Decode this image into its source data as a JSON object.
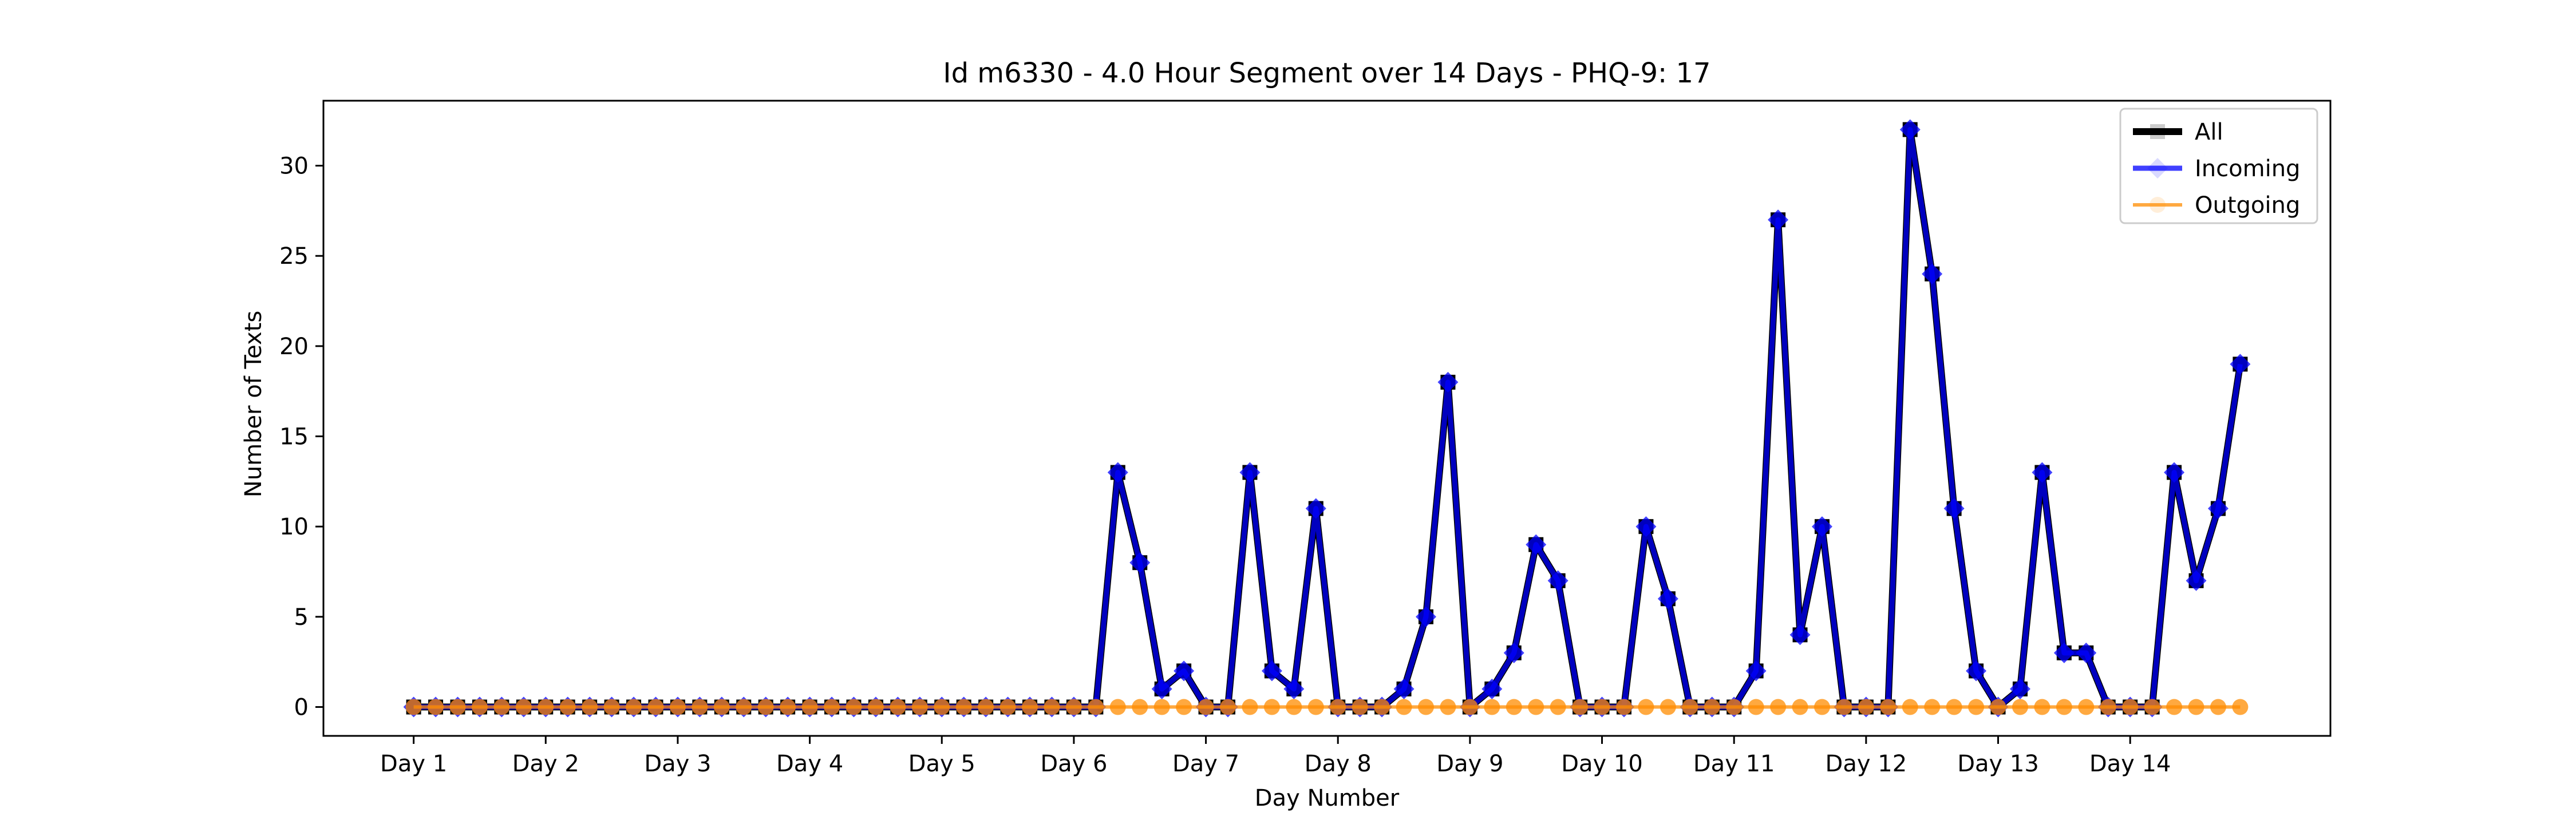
{
  "chart_data": {
    "type": "line",
    "title": "Id m6330 - 4.0 Hour Segment over 14 Days - PHQ-9: 17",
    "xlabel": "Day Number",
    "ylabel": "Number of Texts",
    "x_tick_labels": [
      "Day 1",
      "Day 2",
      "Day 3",
      "Day 4",
      "Day 5",
      "Day 6",
      "Day 7",
      "Day 8",
      "Day 9",
      "Day 10",
      "Day 11",
      "Day 12",
      "Day 13",
      "Day 14"
    ],
    "segments_per_day": 6,
    "y_ticks": [
      0,
      5,
      10,
      15,
      20,
      25,
      30
    ],
    "ylim": [
      -1.6,
      33.6
    ],
    "xlim": [
      -4.1,
      87.1
    ],
    "grid": false,
    "legend_position": "top-right",
    "series": [
      {
        "name": "All",
        "color": "#000000",
        "marker": "square",
        "values": [
          0,
          0,
          0,
          0,
          0,
          0,
          0,
          0,
          0,
          0,
          0,
          0,
          0,
          0,
          0,
          0,
          0,
          0,
          0,
          0,
          0,
          0,
          0,
          0,
          0,
          0,
          0,
          0,
          0,
          0,
          0,
          0,
          13,
          8,
          1,
          2,
          0,
          0,
          13,
          2,
          1,
          11,
          0,
          0,
          0,
          1,
          5,
          18,
          0,
          1,
          3,
          9,
          7,
          0,
          0,
          0,
          10,
          6,
          0,
          0,
          0,
          2,
          27,
          4,
          10,
          0,
          0,
          0,
          32,
          24,
          11,
          2,
          0,
          1,
          13,
          3,
          3,
          0,
          0,
          0,
          13,
          7,
          11,
          19
        ]
      },
      {
        "name": "Incoming",
        "color": "#0000ff",
        "marker": "diamond",
        "values": [
          0,
          0,
          0,
          0,
          0,
          0,
          0,
          0,
          0,
          0,
          0,
          0,
          0,
          0,
          0,
          0,
          0,
          0,
          0,
          0,
          0,
          0,
          0,
          0,
          0,
          0,
          0,
          0,
          0,
          0,
          0,
          0,
          13,
          8,
          1,
          2,
          0,
          0,
          13,
          2,
          1,
          11,
          0,
          0,
          0,
          1,
          5,
          18,
          0,
          1,
          3,
          9,
          7,
          0,
          0,
          0,
          10,
          6,
          0,
          0,
          0,
          2,
          27,
          4,
          10,
          0,
          0,
          0,
          32,
          24,
          11,
          2,
          0,
          1,
          13,
          3,
          3,
          0,
          0,
          0,
          13,
          7,
          11,
          19
        ]
      },
      {
        "name": "Outgoing",
        "color": "#ff8c00",
        "marker": "circle",
        "values": [
          0,
          0,
          0,
          0,
          0,
          0,
          0,
          0,
          0,
          0,
          0,
          0,
          0,
          0,
          0,
          0,
          0,
          0,
          0,
          0,
          0,
          0,
          0,
          0,
          0,
          0,
          0,
          0,
          0,
          0,
          0,
          0,
          0,
          0,
          0,
          0,
          0,
          0,
          0,
          0,
          0,
          0,
          0,
          0,
          0,
          0,
          0,
          0,
          0,
          0,
          0,
          0,
          0,
          0,
          0,
          0,
          0,
          0,
          0,
          0,
          0,
          0,
          0,
          0,
          0,
          0,
          0,
          0,
          0,
          0,
          0,
          0,
          0,
          0,
          0,
          0,
          0,
          0,
          0,
          0,
          0,
          0,
          0,
          0
        ]
      }
    ]
  }
}
